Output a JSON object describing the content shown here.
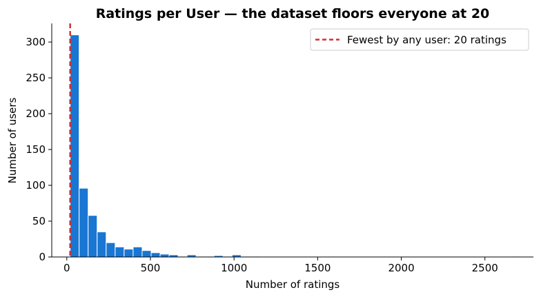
{
  "chart_data": {
    "type": "bar",
    "title": "Ratings per User — the dataset floors everyone at 20",
    "xlabel": "Number of ratings",
    "ylabel": "Number of users",
    "xlim": [
      -90,
      2790
    ],
    "ylim": [
      0,
      326
    ],
    "xticks": [
      "0",
      "500",
      "1000",
      "1500",
      "2000",
      "2500"
    ],
    "yticks": [
      "0",
      "50",
      "100",
      "150",
      "200",
      "250",
      "300"
    ],
    "bin_edges_start": 20,
    "bin_width": 53.8,
    "values": [
      310,
      96,
      58,
      35,
      20,
      14,
      11,
      14,
      9,
      6,
      4,
      3,
      1,
      3,
      1,
      1,
      2,
      1,
      3,
      1,
      1,
      0,
      0,
      0,
      0,
      0,
      0,
      0,
      0,
      0,
      0,
      0,
      0,
      0,
      0,
      0,
      0,
      0,
      0,
      0,
      0,
      0,
      0,
      0,
      0,
      0,
      0,
      0,
      0,
      1
    ],
    "bar_color": "#1976d2",
    "bar_edge_color": "#ffffff",
    "reference_line": {
      "x": 20,
      "color": "#d32f2f",
      "style": "dashed",
      "label": "Fewest by any user: 20 ratings"
    },
    "legend_position": "top-right",
    "grid": false
  }
}
